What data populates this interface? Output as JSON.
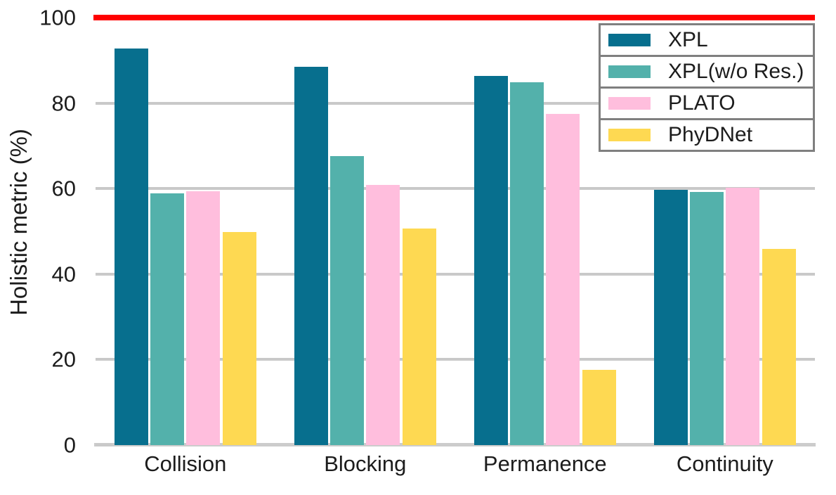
{
  "chart_data": {
    "type": "bar",
    "title": "",
    "xlabel": "",
    "ylabel": "Holistic metric (%)",
    "categories": [
      "Collision",
      "Blocking",
      "Permanence",
      "Continuity"
    ],
    "series": [
      {
        "name": "XPL",
        "color": "#076f8e",
        "values": [
          92.8,
          88.5,
          86.3,
          59.6
        ]
      },
      {
        "name": "XPL(w/o Res.)",
        "color": "#53b1ab",
        "values": [
          58.8,
          67.6,
          84.8,
          59.1
        ]
      },
      {
        "name": "PLATO",
        "color": "#ffbedd",
        "values": [
          59.3,
          60.9,
          77.5,
          60.2
        ]
      },
      {
        "name": "PhyDNet",
        "color": "#fed952",
        "values": [
          49.8,
          50.6,
          17.5,
          45.9
        ]
      }
    ],
    "ylim": [
      0,
      100
    ],
    "yticks": [
      0,
      20,
      40,
      60,
      80,
      100
    ],
    "grid": true,
    "grid_color": "#c9c9c9",
    "axis_line_color": "#cccccc",
    "tick_color": "#c9c9c9",
    "text_color": "#1c1c1c",
    "legend_position": "upper right",
    "legend_border_color": "#7f7f7f",
    "reference_line": {
      "value": 100,
      "color": "#ff0000"
    }
  }
}
